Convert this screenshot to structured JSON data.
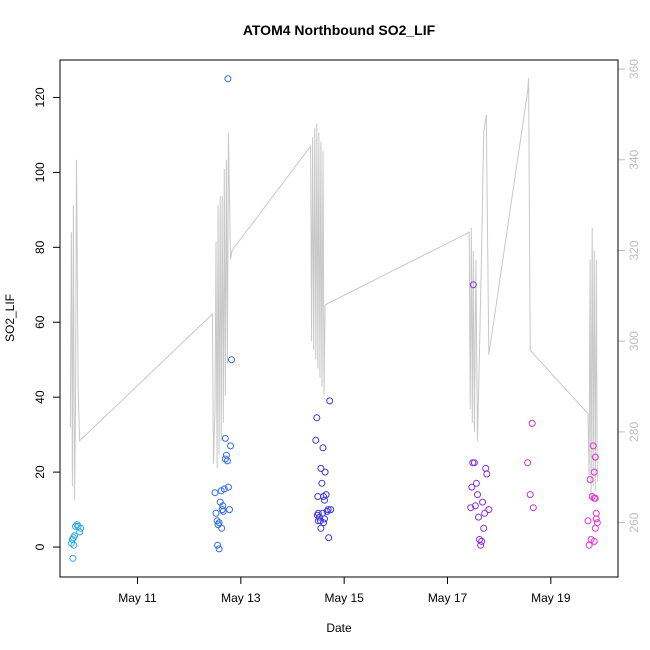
{
  "chart_data": {
    "type": "scatter",
    "title": "ATOM4 Northbound SO2_LIF",
    "xlabel": "Date",
    "ylabel": "SO2_LIF",
    "xlim": [
      9.5,
      20.3
    ],
    "ylim": [
      -8,
      130
    ],
    "y2lim": [
      248,
      362
    ],
    "x_ticks": [
      11,
      13,
      15,
      17,
      19
    ],
    "x_tick_labels": [
      "May 11",
      "May 13",
      "May 15",
      "May 17",
      "May 19"
    ],
    "y_ticks": [
      0,
      20,
      40,
      60,
      80,
      100,
      120
    ],
    "y2_ticks": [
      260,
      280,
      300,
      320,
      340,
      360
    ],
    "y2_color": "#bdbdbd",
    "line_color": "#c8c8c8",
    "series": [
      {
        "color": "#29a9e6",
        "points": [
          [
            9.72,
            1
          ],
          [
            9.74,
            2
          ],
          [
            9.76,
            2.5
          ],
          [
            9.78,
            3
          ],
          [
            9.75,
            -3
          ],
          [
            9.8,
            5.5
          ],
          [
            9.83,
            6
          ],
          [
            9.85,
            5.5
          ],
          [
            9.88,
            4
          ],
          [
            9.9,
            5
          ],
          [
            9.77,
            0.5
          ]
        ]
      },
      {
        "color": "#2f6de8",
        "points": [
          [
            12.5,
            14.5
          ],
          [
            12.52,
            9
          ],
          [
            12.54,
            7
          ],
          [
            12.56,
            6
          ],
          [
            12.58,
            -0.5
          ],
          [
            12.6,
            12
          ],
          [
            12.62,
            15
          ],
          [
            12.64,
            10
          ],
          [
            12.66,
            9.5
          ],
          [
            12.68,
            15.5
          ],
          [
            12.7,
            29
          ],
          [
            12.72,
            24.5
          ],
          [
            12.74,
            23
          ],
          [
            12.76,
            16
          ],
          [
            12.78,
            10
          ],
          [
            12.8,
            27
          ],
          [
            12.82,
            50
          ],
          [
            12.75,
            125
          ],
          [
            12.55,
            0.5
          ],
          [
            12.63,
            5
          ],
          [
            12.58,
            6.5
          ],
          [
            12.65,
            11
          ],
          [
            12.7,
            23.5
          ]
        ]
      },
      {
        "color": "#3d36d9",
        "points": [
          [
            14.45,
            28.5
          ],
          [
            14.47,
            34.5
          ],
          [
            14.49,
            13.5
          ],
          [
            14.5,
            9
          ],
          [
            14.52,
            8
          ],
          [
            14.54,
            7
          ],
          [
            14.55,
            21
          ],
          [
            14.57,
            17
          ],
          [
            14.59,
            26.5
          ],
          [
            14.6,
            13.5
          ],
          [
            14.62,
            12.5
          ],
          [
            14.63,
            20
          ],
          [
            14.65,
            14
          ],
          [
            14.67,
            9.5
          ],
          [
            14.69,
            10
          ],
          [
            14.7,
            2.5
          ],
          [
            14.72,
            39
          ],
          [
            14.74,
            10
          ],
          [
            14.55,
            5
          ],
          [
            14.58,
            9
          ],
          [
            14.6,
            6.5
          ],
          [
            14.62,
            7.5
          ],
          [
            14.5,
            7
          ],
          [
            14.48,
            8.5
          ]
        ]
      },
      {
        "color": "#8a2fe0",
        "points": [
          [
            17.45,
            10.5
          ],
          [
            17.47,
            16
          ],
          [
            17.49,
            22.5
          ],
          [
            17.5,
            70
          ],
          [
            17.52,
            22.5
          ],
          [
            17.54,
            11
          ],
          [
            17.56,
            17
          ],
          [
            17.58,
            14
          ],
          [
            17.6,
            8
          ],
          [
            17.62,
            2
          ],
          [
            17.64,
            0.5
          ],
          [
            17.66,
            1.5
          ],
          [
            17.68,
            12
          ],
          [
            17.7,
            5
          ],
          [
            17.72,
            9
          ],
          [
            17.74,
            21
          ],
          [
            17.76,
            19.5
          ],
          [
            17.8,
            10
          ]
        ]
      },
      {
        "color": "#c832d9",
        "points": [
          [
            18.55,
            22.5
          ],
          [
            18.6,
            14
          ],
          [
            18.64,
            33
          ],
          [
            18.66,
            10.5
          ]
        ]
      },
      {
        "color": "#e830d0",
        "points": [
          [
            19.72,
            7
          ],
          [
            19.74,
            0.5
          ],
          [
            19.76,
            18
          ],
          [
            19.78,
            2
          ],
          [
            19.8,
            13.5
          ],
          [
            19.82,
            27
          ],
          [
            19.84,
            20
          ],
          [
            19.86,
            24
          ],
          [
            19.84,
            13
          ],
          [
            19.86,
            5
          ],
          [
            19.88,
            9
          ],
          [
            19.9,
            6.5
          ],
          [
            19.88,
            7.5
          ],
          [
            19.84,
            1.5
          ],
          [
            19.86,
            13
          ]
        ]
      }
    ],
    "line_y2": [
      [
        9.7,
        281
      ],
      [
        9.72,
        324
      ],
      [
        9.74,
        268
      ],
      [
        9.76,
        330
      ],
      [
        9.78,
        265
      ],
      [
        9.8,
        285
      ],
      [
        9.82,
        340
      ],
      [
        9.85,
        290
      ],
      [
        9.88,
        278
      ],
      [
        12.45,
        306
      ],
      [
        12.47,
        273
      ],
      [
        12.5,
        285
      ],
      [
        12.52,
        322
      ],
      [
        12.54,
        272
      ],
      [
        12.56,
        330
      ],
      [
        12.58,
        275
      ],
      [
        12.6,
        332
      ],
      [
        12.62,
        278
      ],
      [
        12.64,
        332
      ],
      [
        12.66,
        282
      ],
      [
        12.68,
        338
      ],
      [
        12.7,
        288
      ],
      [
        12.72,
        340
      ],
      [
        12.74,
        295
      ],
      [
        12.76,
        346
      ],
      [
        12.8,
        318
      ],
      [
        12.83,
        320
      ],
      [
        14.35,
        343
      ],
      [
        14.37,
        300
      ],
      [
        14.39,
        345
      ],
      [
        14.41,
        298
      ],
      [
        14.43,
        347
      ],
      [
        14.45,
        296
      ],
      [
        14.47,
        348
      ],
      [
        14.49,
        294
      ],
      [
        14.51,
        346
      ],
      [
        14.53,
        292
      ],
      [
        14.55,
        344
      ],
      [
        14.57,
        290
      ],
      [
        14.59,
        342
      ],
      [
        14.61,
        288
      ],
      [
        14.63,
        308
      ],
      [
        17.42,
        324
      ],
      [
        17.44,
        285
      ],
      [
        17.46,
        325
      ],
      [
        17.48,
        282
      ],
      [
        17.5,
        320
      ],
      [
        17.52,
        280
      ],
      [
        17.55,
        318
      ],
      [
        17.58,
        278
      ],
      [
        17.62,
        298
      ],
      [
        17.66,
        320
      ],
      [
        17.7,
        346
      ],
      [
        17.75,
        350
      ],
      [
        17.8,
        297
      ],
      [
        18.55,
        355
      ],
      [
        18.57,
        358
      ],
      [
        18.6,
        298
      ],
      [
        19.72,
        284
      ],
      [
        19.74,
        270
      ],
      [
        19.76,
        318
      ],
      [
        19.78,
        265
      ],
      [
        19.8,
        325
      ],
      [
        19.82,
        268
      ],
      [
        19.84,
        320
      ],
      [
        19.86,
        267
      ],
      [
        19.88,
        318
      ],
      [
        19.9,
        269
      ]
    ]
  }
}
